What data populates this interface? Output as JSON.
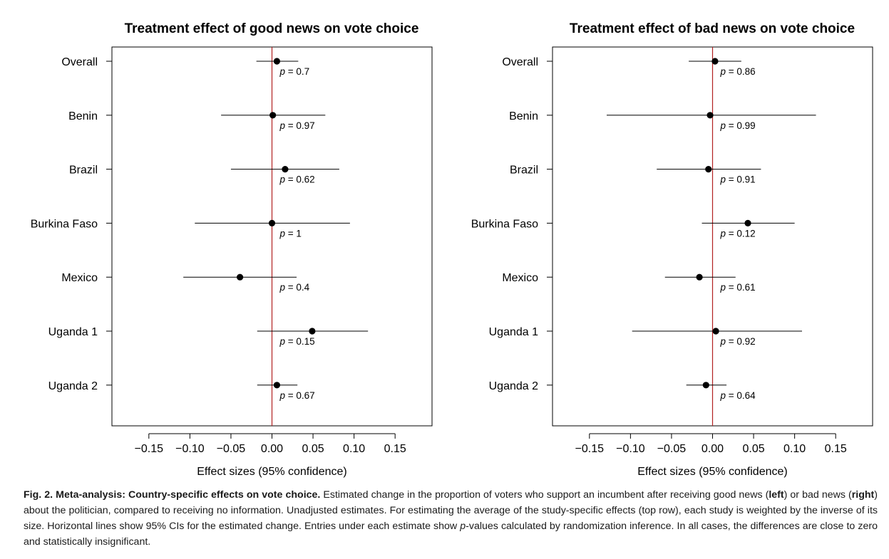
{
  "chart_data": [
    {
      "type": "forest",
      "title": "Treatment effect of good news on vote choice",
      "xlabel": "Effect sizes (95% confidence)",
      "xlim": [
        -0.195,
        0.195
      ],
      "xticks": [
        -0.15,
        -0.1,
        -0.05,
        0.0,
        0.05,
        0.1,
        0.15
      ],
      "xtick_labels": [
        "−0.15",
        "−0.10",
        "−0.05",
        "0.00",
        "0.05",
        "0.10",
        "0.15"
      ],
      "reference_line": 0,
      "reference_color": "#b22222",
      "categories": [
        "Overall",
        "Benin",
        "Brazil",
        "Burkina Faso",
        "Mexico",
        "Uganda 1",
        "Uganda 2"
      ],
      "estimates": [
        0.006,
        0.001,
        0.016,
        0.0,
        -0.039,
        0.049,
        0.006
      ],
      "ci_low": [
        -0.019,
        -0.062,
        -0.05,
        -0.094,
        -0.108,
        -0.018,
        -0.018
      ],
      "ci_high": [
        0.032,
        0.065,
        0.082,
        0.095,
        0.03,
        0.117,
        0.031
      ],
      "p_values": [
        "p = 0.7",
        "p = 0.97",
        "p = 0.62",
        "p = 1",
        "p = 0.4",
        "p = 0.15",
        "p = 0.67"
      ]
    },
    {
      "type": "forest",
      "title": "Treatment effect of bad news on vote choice",
      "xlabel": "Effect sizes (95% confidence)",
      "xlim": [
        -0.195,
        0.195
      ],
      "xticks": [
        -0.15,
        -0.1,
        -0.05,
        0.0,
        0.05,
        0.1,
        0.15
      ],
      "xtick_labels": [
        "−0.15",
        "−0.10",
        "−0.05",
        "0.00",
        "0.05",
        "0.10",
        "0.15"
      ],
      "reference_line": 0,
      "reference_color": "#b22222",
      "categories": [
        "Overall",
        "Benin",
        "Brazil",
        "Burkina Faso",
        "Mexico",
        "Uganda 1",
        "Uganda 2"
      ],
      "estimates": [
        0.003,
        -0.003,
        -0.005,
        0.043,
        -0.016,
        0.004,
        -0.008
      ],
      "ci_low": [
        -0.029,
        -0.129,
        -0.068,
        -0.013,
        -0.058,
        -0.098,
        -0.032
      ],
      "ci_high": [
        0.035,
        0.126,
        0.059,
        0.1,
        0.028,
        0.109,
        0.017
      ],
      "p_values": [
        "p = 0.86",
        "p = 0.99",
        "p = 0.91",
        "p = 0.12",
        "p = 0.61",
        "p = 0.92",
        "p = 0.64"
      ]
    }
  ],
  "caption": {
    "label": "Fig. 2. Meta-analysis: Country-specific effects on vote choice.",
    "text_1": " Estimated change in the proportion of voters who support an incumbent after receiving good news (",
    "left_word": "left",
    "text_2": ") or bad news (",
    "right_word": "right",
    "text_3": ") about the politician, compared to receiving no information. Unadjusted estimates. For estimating the average of the study-specific effects (top row), each study is weighted by the inverse of its size. Horizontal lines show 95% CIs for the estimated change. Entries under each estimate show ",
    "p_italic": "p",
    "text_4": "-values calculated by randomization inference. In all cases, the differences are close to zero and statistically insignificant."
  }
}
